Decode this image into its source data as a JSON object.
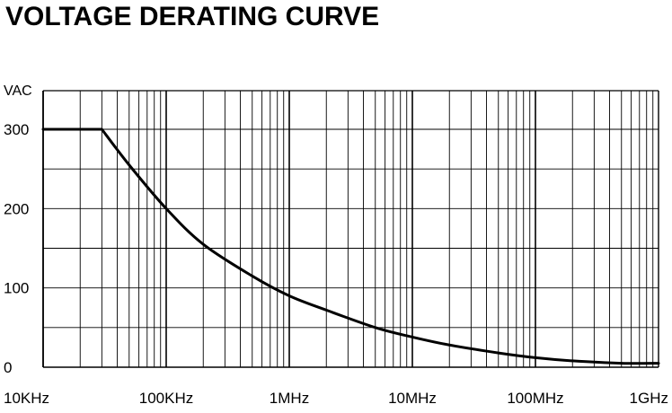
{
  "chart_data": {
    "type": "line",
    "title": "VOLTAGE DERATING CURVE",
    "ylabel": "VAC",
    "xlabel": "",
    "xscale": "log",
    "x_unit": "Hz",
    "xlim": [
      10000,
      1000000000
    ],
    "ylim": [
      0,
      300
    ],
    "x_tick_values": [
      10000,
      100000,
      1000000,
      10000000,
      100000000,
      1000000000
    ],
    "x_tick_labels": [
      "10KHz",
      "100KHz",
      "1MHz",
      "10MHz",
      "100MHz",
      "1GHz"
    ],
    "y_tick_values": [
      0,
      100,
      200,
      300
    ],
    "y_tick_labels": [
      "0",
      "100",
      "200",
      "300"
    ],
    "y_gridlines": [
      0,
      50,
      100,
      150,
      200,
      250,
      300
    ],
    "grid": true,
    "legend": "none",
    "series": [
      {
        "x": [
          10000,
          30000,
          50000,
          100000,
          200000,
          500000,
          1000000,
          2000000,
          5000000,
          10000000,
          20000000,
          50000000,
          100000000,
          200000000,
          500000000,
          1000000000
        ],
        "y": [
          300,
          300,
          255,
          200,
          155,
          115,
          90,
          72,
          50,
          38,
          28,
          18,
          12,
          8,
          5,
          5
        ]
      }
    ]
  }
}
